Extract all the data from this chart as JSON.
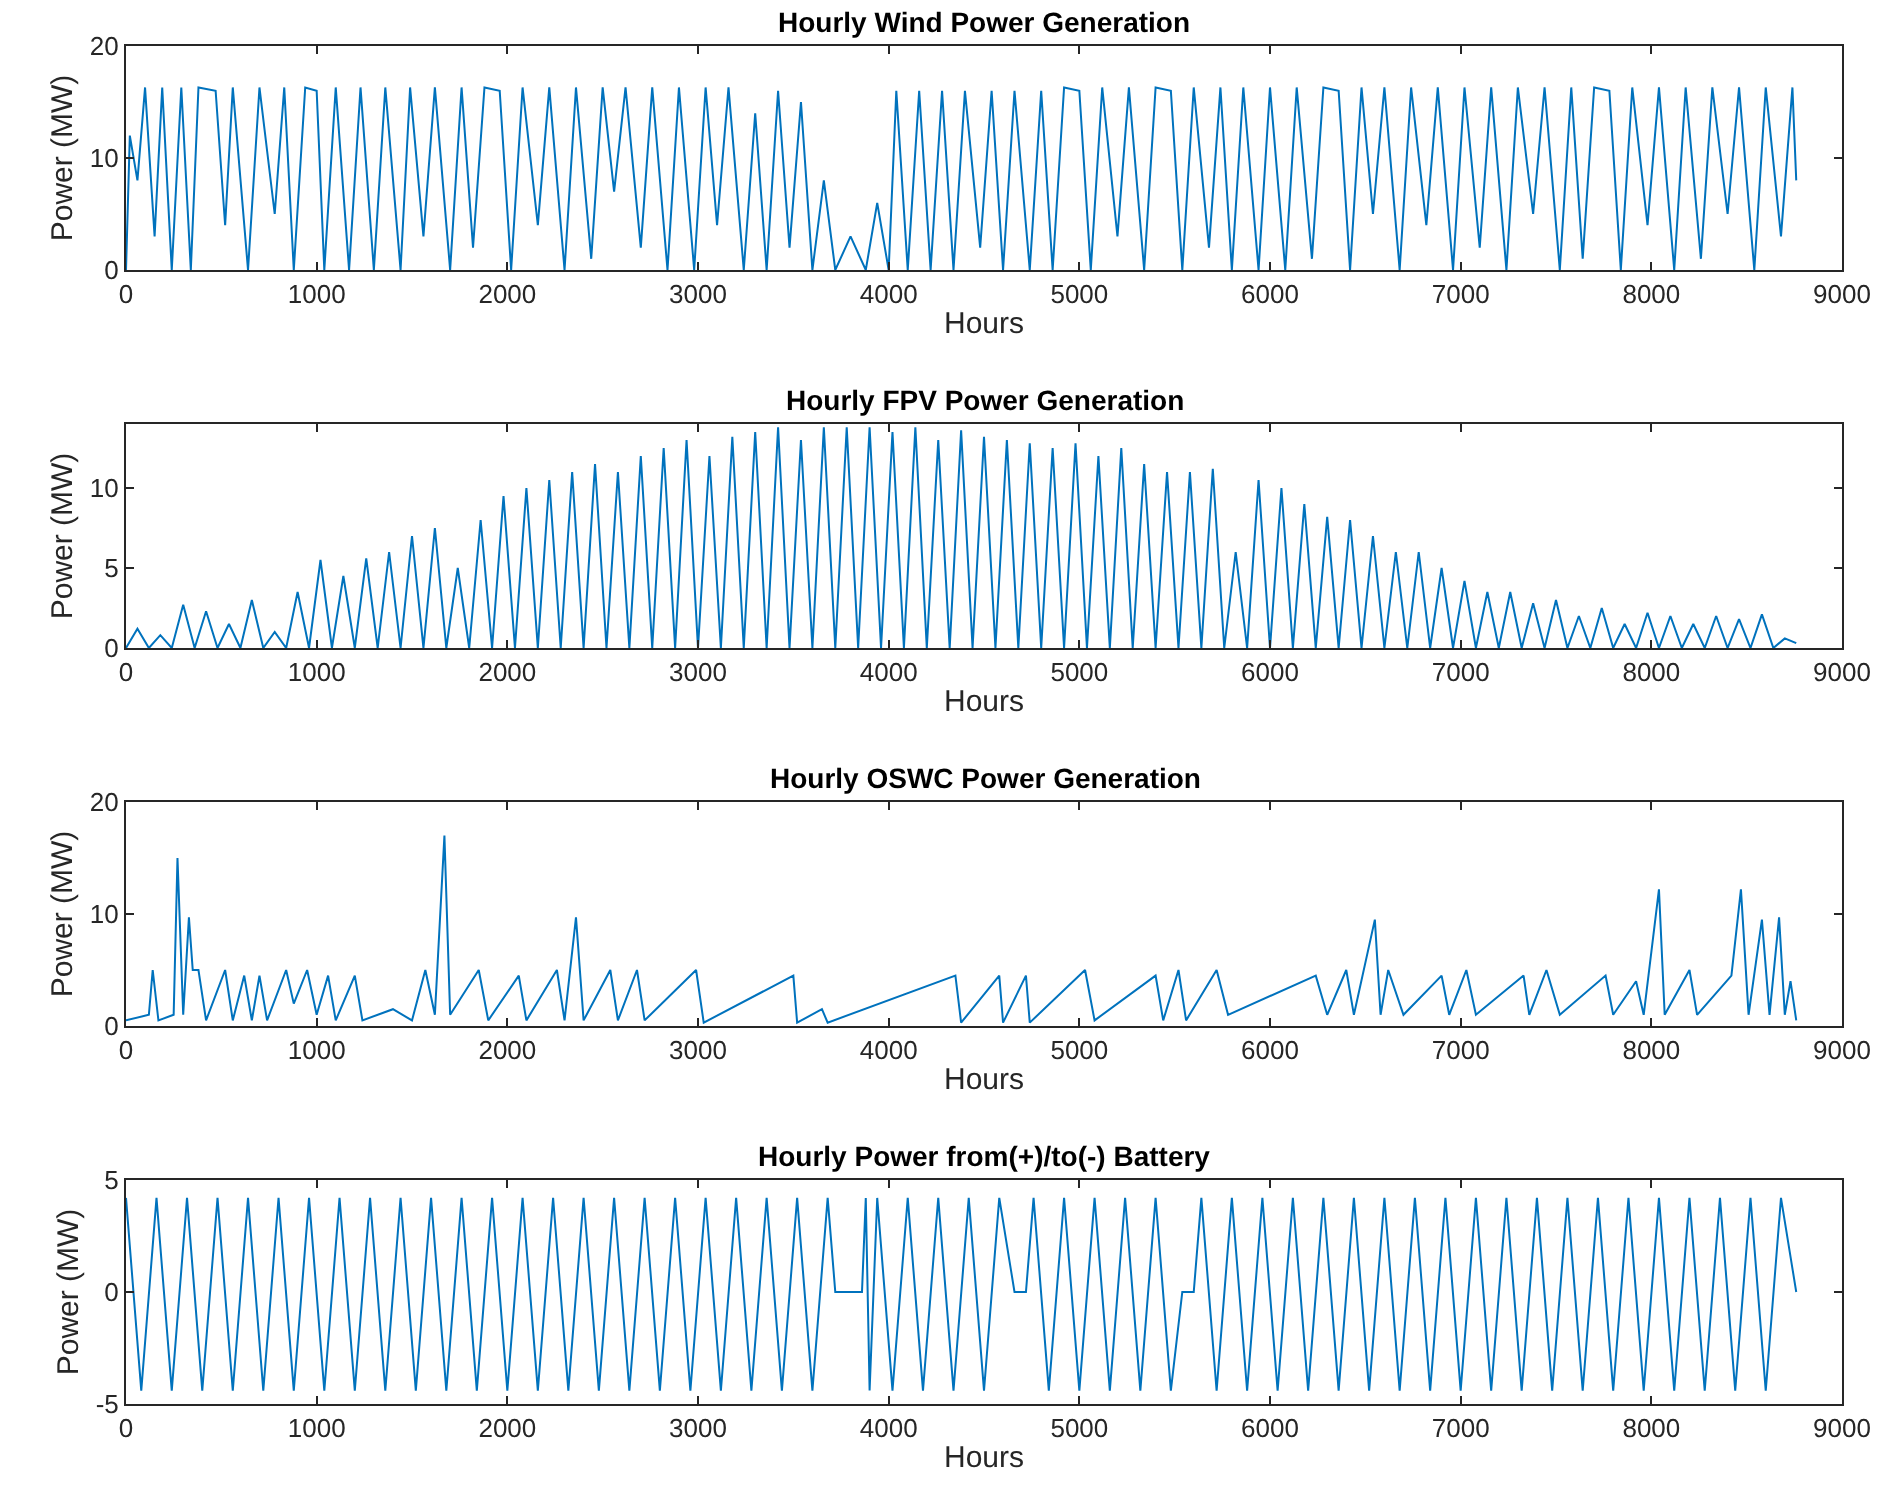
{
  "chart_data": [
    {
      "type": "line",
      "title": "Hourly Wind Power Generation",
      "xlabel": "Hours",
      "ylabel": "Power (MW)",
      "xlim": [
        0,
        9000
      ],
      "xticks": [
        0,
        1000,
        2000,
        3000,
        4000,
        5000,
        6000,
        7000,
        8000,
        9000
      ],
      "ylim": [
        0,
        20
      ],
      "yticks": [
        0,
        10,
        20
      ],
      "series": [
        {
          "color": "#0072bd",
          "x": [
            0,
            20,
            60,
            100,
            150,
            190,
            240,
            290,
            340,
            380,
            470,
            520,
            560,
            640,
            700,
            780,
            830,
            880,
            940,
            1000,
            1040,
            1100,
            1170,
            1230,
            1300,
            1360,
            1440,
            1490,
            1560,
            1620,
            1700,
            1760,
            1820,
            1880,
            1960,
            2020,
            2080,
            2160,
            2220,
            2300,
            2360,
            2440,
            2500,
            2560,
            2620,
            2700,
            2760,
            2840,
            2900,
            2980,
            3040,
            3100,
            3160,
            3240,
            3300,
            3360,
            3420,
            3480,
            3540,
            3600,
            3660,
            3720,
            3800,
            3880,
            3940,
            4000,
            4040,
            4100,
            4160,
            4220,
            4280,
            4340,
            4400,
            4480,
            4540,
            4600,
            4660,
            4740,
            4800,
            4860,
            4920,
            5000,
            5060,
            5120,
            5200,
            5260,
            5340,
            5400,
            5480,
            5540,
            5600,
            5680,
            5740,
            5800,
            5860,
            5940,
            6000,
            6080,
            6140,
            6220,
            6280,
            6360,
            6420,
            6480,
            6540,
            6600,
            6680,
            6740,
            6820,
            6880,
            6960,
            7020,
            7100,
            7160,
            7240,
            7300,
            7380,
            7440,
            7520,
            7580,
            7640,
            7700,
            7780,
            7840,
            7900,
            7980,
            8040,
            8120,
            8180,
            8260,
            8320,
            8400,
            8460,
            8540,
            8600,
            8680,
            8740,
            8760
          ],
          "values": [
            0,
            12,
            8,
            16.3,
            3,
            16.3,
            0,
            16.3,
            0,
            16.3,
            16,
            4,
            16.3,
            0,
            16.3,
            5,
            16.3,
            0,
            16.3,
            16,
            0,
            16.3,
            0,
            16.3,
            0,
            16.3,
            0,
            16.3,
            3,
            16.3,
            0,
            16.3,
            2,
            16.3,
            16,
            0,
            16.3,
            4,
            16.3,
            0,
            16.3,
            1,
            16.3,
            7,
            16.3,
            2,
            16.3,
            0,
            16.3,
            0,
            16.3,
            4,
            16.3,
            0,
            14,
            0,
            16,
            2,
            15,
            0,
            8,
            0,
            3,
            0,
            6,
            0,
            16,
            0,
            16,
            0,
            16,
            0,
            16,
            2,
            16,
            0,
            16,
            0,
            16,
            0,
            16.3,
            16,
            0,
            16.3,
            3,
            16.3,
            0,
            16.3,
            16,
            0,
            16.3,
            2,
            16.3,
            0,
            16.3,
            0,
            16.3,
            0,
            16.3,
            1,
            16.3,
            16,
            0,
            16.3,
            5,
            16.3,
            0,
            16.3,
            4,
            16.3,
            0,
            16.3,
            2,
            16.3,
            0,
            16.3,
            5,
            16.3,
            0,
            16.3,
            1,
            16.3,
            16,
            0,
            16.3,
            4,
            16.3,
            0,
            16.3,
            1,
            16.3,
            5,
            16.3,
            0,
            16.3,
            3,
            16.3,
            8
          ]
        }
      ]
    },
    {
      "type": "line",
      "title": "Hourly FPV Power Generation",
      "xlabel": "Hours",
      "ylabel": "Power (MW)",
      "xlim": [
        0,
        9000
      ],
      "xticks": [
        0,
        1000,
        2000,
        3000,
        4000,
        5000,
        6000,
        7000,
        8000,
        9000
      ],
      "ylim": [
        0,
        14
      ],
      "yticks": [
        0,
        5,
        10
      ],
      "series": [
        {
          "color": "#0072bd",
          "x": [
            0,
            60,
            120,
            180,
            240,
            300,
            360,
            420,
            480,
            540,
            600,
            660,
            720,
            780,
            840,
            900,
            960,
            1020,
            1080,
            1140,
            1200,
            1260,
            1320,
            1380,
            1440,
            1500,
            1560,
            1620,
            1680,
            1740,
            1800,
            1860,
            1920,
            1980,
            2040,
            2100,
            2160,
            2220,
            2280,
            2340,
            2400,
            2460,
            2520,
            2580,
            2640,
            2700,
            2760,
            2820,
            2880,
            2940,
            3000,
            3060,
            3120,
            3180,
            3240,
            3300,
            3360,
            3420,
            3480,
            3540,
            3600,
            3660,
            3720,
            3780,
            3840,
            3900,
            3960,
            4020,
            4080,
            4140,
            4200,
            4260,
            4320,
            4380,
            4440,
            4500,
            4560,
            4620,
            4680,
            4740,
            4800,
            4860,
            4920,
            4980,
            5040,
            5100,
            5160,
            5220,
            5280,
            5340,
            5400,
            5460,
            5520,
            5580,
            5640,
            5700,
            5760,
            5820,
            5880,
            5940,
            6000,
            6060,
            6120,
            6180,
            6240,
            6300,
            6360,
            6420,
            6480,
            6540,
            6600,
            6660,
            6720,
            6780,
            6840,
            6900,
            6960,
            7020,
            7080,
            7140,
            7200,
            7260,
            7320,
            7380,
            7440,
            7500,
            7560,
            7620,
            7680,
            7740,
            7800,
            7860,
            7920,
            7980,
            8040,
            8100,
            8160,
            8220,
            8280,
            8340,
            8400,
            8460,
            8520,
            8580,
            8640,
            8700,
            8760
          ],
          "values": [
            0,
            1.2,
            0,
            0.8,
            0,
            2.7,
            0,
            2.3,
            0,
            1.5,
            0,
            3.0,
            0,
            1.0,
            0,
            3.5,
            0,
            5.5,
            0,
            4.5,
            0,
            5.6,
            0,
            6.0,
            0,
            7.0,
            0,
            7.5,
            0,
            5.0,
            0,
            8.0,
            0,
            9.5,
            0,
            10.0,
            0,
            10.5,
            0,
            11.0,
            0,
            11.5,
            0,
            11.0,
            0,
            12.0,
            0,
            12.5,
            0,
            13.0,
            0,
            12.0,
            0,
            13.2,
            0,
            13.5,
            0,
            13.8,
            0,
            13.0,
            0,
            13.8,
            0,
            13.8,
            0,
            13.8,
            0,
            13.5,
            0,
            13.8,
            0,
            13.0,
            0,
            13.6,
            0,
            13.2,
            0,
            13.0,
            0,
            12.8,
            0,
            12.5,
            0,
            12.8,
            0,
            12.0,
            0,
            12.5,
            0,
            11.5,
            0,
            11.0,
            0,
            11.0,
            0,
            11.2,
            0,
            6.0,
            0,
            10.5,
            0,
            10.0,
            0,
            9.0,
            0,
            8.2,
            0,
            8.0,
            0,
            7.0,
            0,
            6.0,
            0,
            6.0,
            0,
            5.0,
            0,
            4.2,
            0,
            3.5,
            0,
            3.5,
            0,
            2.8,
            0,
            3.0,
            0,
            2.0,
            0,
            2.5,
            0,
            1.5,
            0,
            2.2,
            0,
            2.0,
            0,
            1.5,
            0,
            2.0,
            0,
            1.8,
            0,
            2.1,
            0,
            0.6,
            0.3
          ]
        }
      ]
    },
    {
      "type": "line",
      "title": "Hourly OSWC Power Generation",
      "xlabel": "Hours",
      "ylabel": "Power (MW)",
      "xlim": [
        0,
        9000
      ],
      "xticks": [
        0,
        1000,
        2000,
        3000,
        4000,
        5000,
        6000,
        7000,
        8000,
        9000
      ],
      "ylim": [
        0,
        20
      ],
      "yticks": [
        0,
        10,
        20
      ],
      "series": [
        {
          "color": "#0072bd",
          "x": [
            0,
            120,
            140,
            170,
            250,
            270,
            300,
            330,
            350,
            380,
            420,
            520,
            560,
            620,
            660,
            700,
            740,
            840,
            880,
            950,
            1000,
            1060,
            1100,
            1200,
            1240,
            1400,
            1500,
            1570,
            1620,
            1670,
            1700,
            1850,
            1900,
            2060,
            2100,
            2260,
            2300,
            2360,
            2400,
            2540,
            2580,
            2680,
            2720,
            2990,
            3030,
            3500,
            3520,
            3650,
            3680,
            4350,
            4380,
            4580,
            4600,
            4720,
            4740,
            5030,
            5080,
            5400,
            5440,
            5520,
            5560,
            5720,
            5780,
            6240,
            6300,
            6400,
            6440,
            6550,
            6580,
            6620,
            6700,
            6900,
            6940,
            7030,
            7080,
            7330,
            7360,
            7450,
            7520,
            7760,
            7800,
            7920,
            7960,
            8040,
            8070,
            8200,
            8240,
            8420,
            8470,
            8510,
            8580,
            8620,
            8670,
            8700,
            8730,
            8760
          ],
          "values": [
            0.5,
            1,
            5,
            0.5,
            1,
            15,
            1,
            9.7,
            5,
            5,
            0.5,
            5,
            0.5,
            4.5,
            0.5,
            4.5,
            0.5,
            5,
            2,
            5,
            1,
            4.5,
            0.5,
            4.5,
            0.5,
            1.5,
            0.5,
            5,
            1,
            17,
            1,
            5,
            0.5,
            4.5,
            0.5,
            5,
            0.5,
            9.7,
            0.5,
            5,
            0.5,
            5,
            0.5,
            5,
            0.3,
            4.5,
            0.3,
            1.5,
            0.3,
            4.5,
            0.3,
            4.5,
            0.3,
            4.5,
            0.3,
            5,
            0.5,
            4.5,
            0.5,
            5,
            0.5,
            5,
            1,
            4.5,
            1,
            5,
            1,
            9.5,
            1,
            5,
            1,
            4.5,
            1,
            5,
            1,
            4.5,
            1,
            5,
            1,
            4.5,
            1,
            4,
            1,
            12.2,
            1,
            5,
            1,
            4.5,
            12.2,
            1,
            9.5,
            1,
            9.7,
            1,
            4,
            0.5
          ]
        }
      ]
    },
    {
      "type": "line",
      "title": "Hourly Power from(+)/to(-) Battery",
      "xlabel": "Hours",
      "ylabel": "Power (MW)",
      "xlim": [
        0,
        9000
      ],
      "xticks": [
        0,
        1000,
        2000,
        3000,
        4000,
        5000,
        6000,
        7000,
        8000,
        9000
      ],
      "ylim": [
        -5,
        5
      ],
      "yticks": [
        -5,
        0,
        5
      ],
      "series": [
        {
          "color": "#0072bd",
          "x": [
            0,
            80,
            160,
            240,
            320,
            400,
            480,
            560,
            640,
            720,
            800,
            880,
            960,
            1040,
            1120,
            1200,
            1280,
            1360,
            1440,
            1520,
            1600,
            1680,
            1760,
            1840,
            1920,
            2000,
            2080,
            2160,
            2240,
            2320,
            2400,
            2480,
            2560,
            2640,
            2720,
            2800,
            2880,
            2960,
            3040,
            3120,
            3200,
            3280,
            3360,
            3440,
            3520,
            3600,
            3680,
            3720,
            3860,
            3880,
            3900,
            3940,
            4020,
            4100,
            4180,
            4260,
            4340,
            4420,
            4500,
            4580,
            4660,
            4720,
            4760,
            4840,
            4920,
            5000,
            5080,
            5160,
            5240,
            5320,
            5400,
            5480,
            5540,
            5600,
            5640,
            5720,
            5800,
            5880,
            5960,
            6040,
            6120,
            6200,
            6280,
            6360,
            6440,
            6520,
            6600,
            6680,
            6760,
            6840,
            6920,
            7000,
            7080,
            7160,
            7240,
            7320,
            7400,
            7480,
            7560,
            7640,
            7720,
            7800,
            7880,
            7960,
            8040,
            8120,
            8200,
            8280,
            8360,
            8440,
            8520,
            8600,
            8680,
            8760
          ],
          "values": [
            4.2,
            -4.4,
            4.2,
            -4.4,
            4.2,
            -4.4,
            4.2,
            -4.4,
            4.2,
            -4.4,
            4.2,
            -4.4,
            4.2,
            -4.4,
            4.2,
            -4.4,
            4.2,
            -4.4,
            4.2,
            -4.4,
            4.2,
            -4.4,
            4.2,
            -4.4,
            4.2,
            -4.4,
            4.2,
            -4.4,
            4.2,
            -4.4,
            4.2,
            -4.4,
            4.2,
            -4.4,
            4.2,
            -4.4,
            4.2,
            -4.4,
            4.2,
            -4.4,
            4.2,
            -4.4,
            4.2,
            -4.4,
            4.2,
            -4.4,
            4.2,
            0,
            0,
            4.2,
            -4.4,
            4.2,
            -4.4,
            4.2,
            -4.4,
            4.2,
            -4.4,
            4.2,
            -4.4,
            4.2,
            0,
            0,
            4.2,
            -4.4,
            4.2,
            -4.4,
            4.2,
            -4.4,
            4.2,
            -4.4,
            4.2,
            -4.4,
            0,
            0,
            4.2,
            -4.4,
            4.2,
            -4.4,
            4.2,
            -4.4,
            4.2,
            -4.4,
            4.2,
            -4.4,
            4.2,
            -4.4,
            4.2,
            -4.4,
            4.2,
            -4.4,
            4.2,
            -4.4,
            4.2,
            -4.4,
            4.2,
            -4.4,
            4.2,
            -4.4,
            4.2,
            -4.4,
            4.2,
            -4.4,
            4.2,
            -4.4,
            4.2,
            -4.4,
            4.2,
            -4.4,
            4.2,
            -4.4,
            4.2,
            -4.4,
            4.2,
            0
          ]
        }
      ]
    }
  ]
}
